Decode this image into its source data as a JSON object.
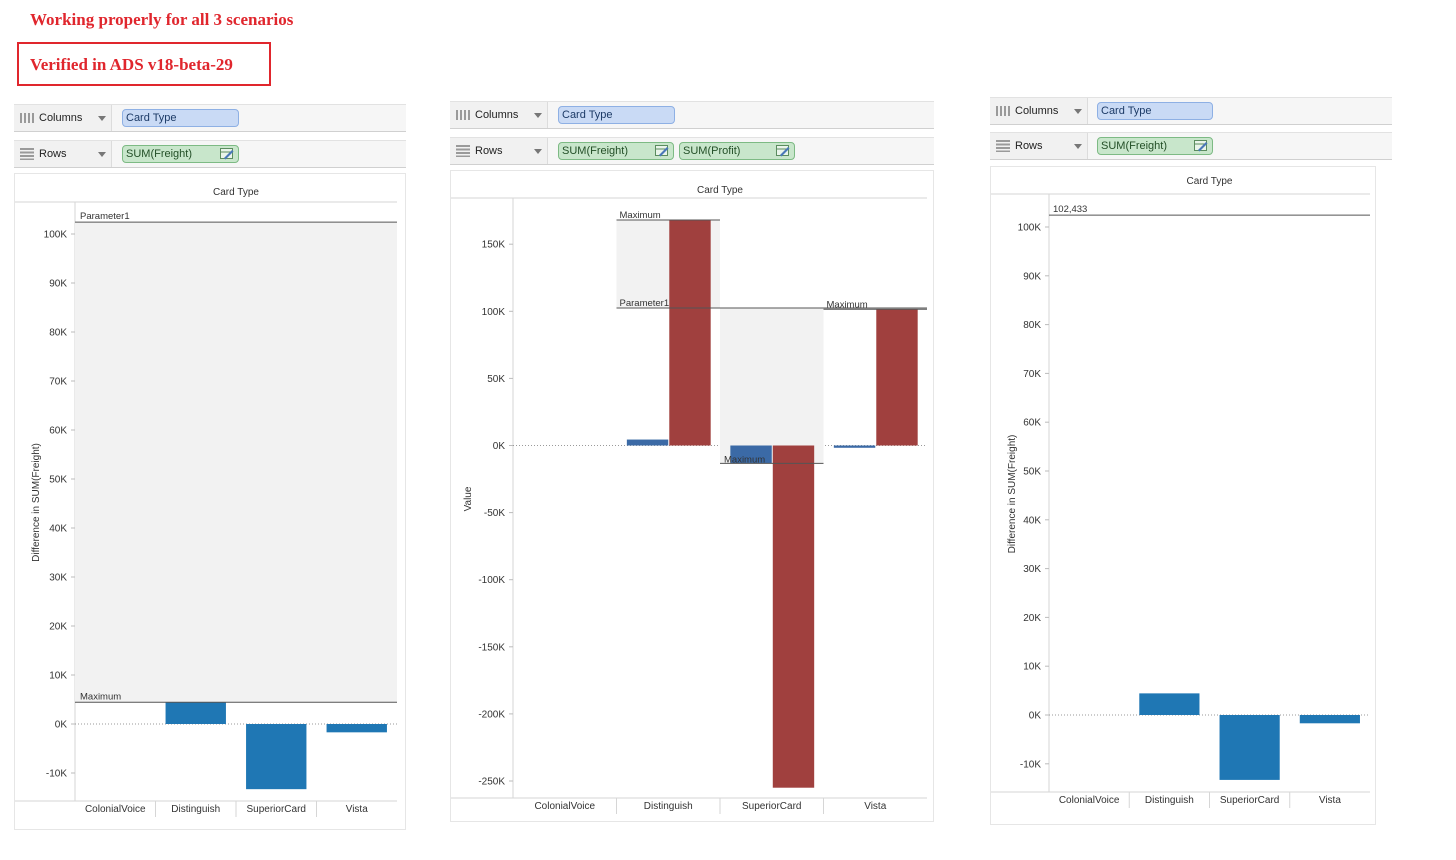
{
  "header": {
    "title": "Working properly for all 3 scenarios",
    "verified": "Verified in ADS v18-beta-29"
  },
  "shelves": {
    "columns_label": "Columns",
    "rows_label": "Rows"
  },
  "panels": [
    {
      "columns_pill": "Card Type",
      "rows_pills": [
        "SUM(Freight)"
      ]
    },
    {
      "columns_pill": "Card Type",
      "rows_pills": [
        "SUM(Freight)",
        "SUM(Profit)"
      ]
    },
    {
      "columns_pill": "Card Type",
      "rows_pills": [
        "SUM(Freight)"
      ]
    }
  ],
  "colors": {
    "freight": "#1f77b4",
    "freight_dark": "#3b6aa6",
    "profit": "#a0403e",
    "band": "#f2f2f2",
    "header_red": "#e0262d",
    "dimension_pill": "#c9daf5",
    "measure_pill": "#c8e6cb"
  },
  "chart_data": [
    {
      "type": "bar",
      "title": "Card Type",
      "ylabel": "Difference in SUM(Freight)",
      "ylim": [
        -15000,
        105000
      ],
      "yticks": [
        -10000,
        0,
        10000,
        20000,
        30000,
        40000,
        50000,
        60000,
        70000,
        80000,
        90000,
        100000
      ],
      "ytick_labels": [
        "-10K",
        "0K",
        "10K",
        "20K",
        "30K",
        "40K",
        "50K",
        "60K",
        "70K",
        "80K",
        "90K",
        "100K"
      ],
      "categories": [
        "ColonialVoice",
        "Distinguish",
        "SuperiorCard",
        "Vista"
      ],
      "series": [
        {
          "values": [
            0,
            4433,
            -13300,
            -1700
          ]
        }
      ],
      "reference_lines": [
        {
          "label": "Parameter1",
          "value": 102433
        },
        {
          "label": "Maximum",
          "value": 4433
        }
      ],
      "band": {
        "from": 4433,
        "to": 102433
      }
    },
    {
      "type": "bar",
      "title": "Card Type",
      "ylabel": "Value",
      "ylim": [
        -260000,
        175000
      ],
      "yticks": [
        -250000,
        -200000,
        -150000,
        -100000,
        -50000,
        0,
        50000,
        100000,
        150000
      ],
      "ytick_labels": [
        "-250K",
        "-200K",
        "-150K",
        "-100K",
        "-50K",
        "0K",
        "50K",
        "100K",
        "150K"
      ],
      "categories": [
        "ColonialVoice",
        "Distinguish",
        "SuperiorCard",
        "Vista"
      ],
      "series": [
        {
          "values": [
            0,
            4433,
            -13300,
            -1700
          ]
        },
        {
          "values": [
            0,
            168000,
            -255000,
            101500
          ]
        }
      ],
      "reference_lines": [
        {
          "label": "Maximum",
          "value": 168000,
          "category": "Distinguish"
        },
        {
          "label": "Parameter1",
          "value": 102433
        },
        {
          "label": "Maximum",
          "value": -13300,
          "category": "SuperiorCard"
        },
        {
          "label": "Maximum",
          "value": 101500,
          "category": "Vista"
        }
      ]
    },
    {
      "type": "bar",
      "title": "Card Type",
      "ylabel": "Difference in SUM(Freight)",
      "ylim": [
        -15000,
        105000
      ],
      "yticks": [
        -10000,
        0,
        10000,
        20000,
        30000,
        40000,
        50000,
        60000,
        70000,
        80000,
        90000,
        100000
      ],
      "ytick_labels": [
        "-10K",
        "0K",
        "10K",
        "20K",
        "30K",
        "40K",
        "50K",
        "60K",
        "70K",
        "80K",
        "90K",
        "100K"
      ],
      "categories": [
        "ColonialVoice",
        "Distinguish",
        "SuperiorCard",
        "Vista"
      ],
      "series": [
        {
          "values": [
            0,
            4433,
            -13300,
            -1700
          ]
        }
      ],
      "reference_lines": [
        {
          "label": "102,433",
          "value": 102433
        }
      ]
    }
  ]
}
